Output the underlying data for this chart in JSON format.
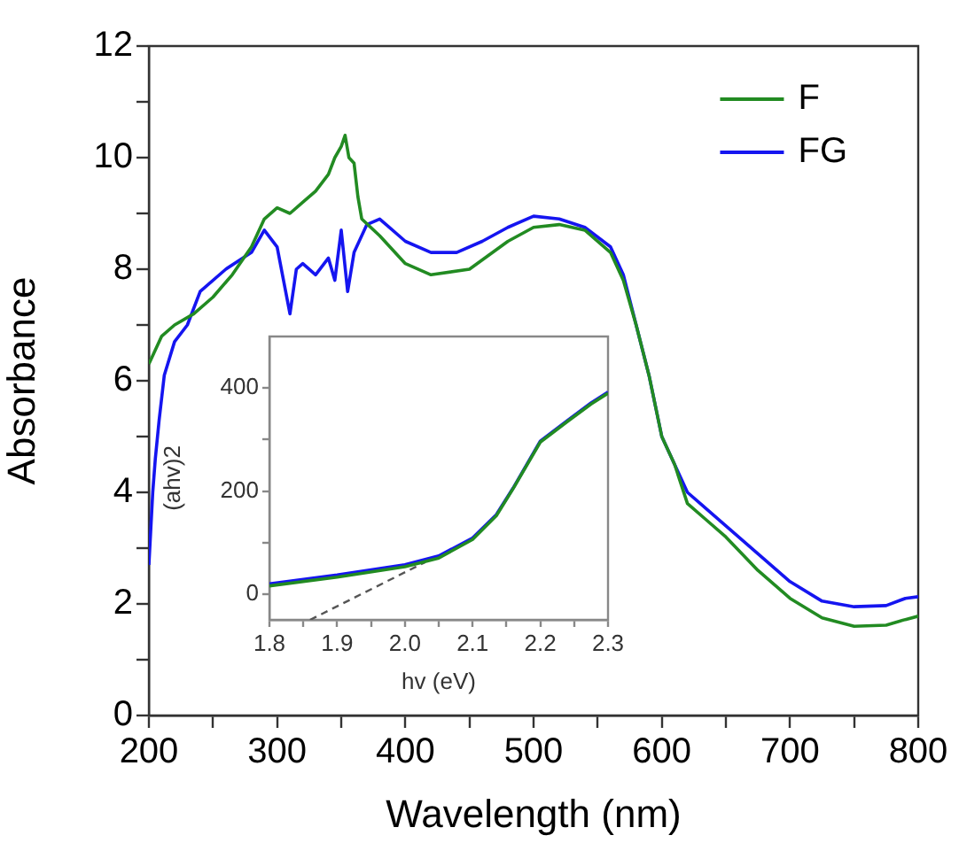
{
  "chart_data": [
    {
      "type": "line",
      "xlabel": "Wavelength (nm)",
      "ylabel": "Absorbance",
      "xlim": [
        200,
        800
      ],
      "ylim": [
        0,
        12
      ],
      "xticks": [
        200,
        {
          "value": 250,
          "label": null
        },
        300,
        {
          "value": 350,
          "label": null
        },
        400,
        {
          "value": 450,
          "label": null
        },
        500,
        {
          "value": 550,
          "label": null
        },
        600,
        {
          "value": 650,
          "label": null
        },
        700,
        {
          "value": 750,
          "label": null
        },
        800
      ],
      "yticks": [
        0,
        {
          "value": 1,
          "label": null
        },
        2,
        {
          "value": 3,
          "label": null
        },
        4,
        {
          "value": 5,
          "label": null
        },
        6,
        {
          "value": 7,
          "label": null
        },
        8,
        {
          "value": 9,
          "label": null
        },
        10,
        {
          "value": 11,
          "label": null
        },
        12
      ],
      "grid": false,
      "legend": "top right",
      "marker": "none",
      "line_style": "solid",
      "series": [
        {
          "name": "F",
          "color": "#228b22",
          "x": [
            200,
            210,
            220,
            235,
            250,
            265,
            280,
            290,
            300,
            310,
            320,
            330,
            340,
            345,
            350,
            353,
            356,
            360,
            363,
            366,
            380,
            400,
            420,
            450,
            480,
            500,
            520,
            540,
            560,
            570,
            580,
            590,
            600,
            610,
            620,
            635,
            650,
            675,
            700,
            725,
            750,
            775,
            790,
            800
          ],
          "values": [
            6.3,
            6.8,
            7.0,
            7.2,
            7.5,
            7.9,
            8.4,
            8.9,
            9.1,
            9.0,
            9.2,
            9.4,
            9.7,
            10.0,
            10.2,
            10.4,
            10.0,
            9.9,
            9.3,
            8.9,
            8.6,
            8.1,
            7.9,
            8.0,
            8.5,
            8.75,
            8.8,
            8.7,
            8.3,
            7.8,
            7.0,
            6.1,
            5.0,
            4.5,
            3.8,
            3.5,
            3.2,
            2.6,
            2.1,
            1.75,
            1.6,
            1.62,
            1.72,
            1.78
          ]
        },
        {
          "name": "FG",
          "color": "#1515f0",
          "x": [
            200,
            203,
            205,
            208,
            212,
            220,
            230,
            240,
            260,
            280,
            290,
            300,
            305,
            310,
            315,
            320,
            330,
            340,
            345,
            350,
            355,
            360,
            370,
            380,
            400,
            420,
            440,
            460,
            480,
            500,
            520,
            540,
            560,
            570,
            580,
            590,
            600,
            610,
            620,
            630,
            650,
            675,
            700,
            725,
            750,
            775,
            790,
            800
          ],
          "values": [
            2.7,
            4.0,
            4.6,
            5.3,
            6.1,
            6.7,
            7.0,
            7.6,
            8.0,
            8.3,
            8.7,
            8.4,
            7.8,
            7.2,
            8.0,
            8.1,
            7.9,
            8.2,
            7.8,
            8.7,
            7.6,
            8.3,
            8.8,
            8.9,
            8.5,
            8.3,
            8.3,
            8.5,
            8.75,
            8.95,
            8.9,
            8.75,
            8.4,
            7.9,
            7.0,
            6.1,
            5.0,
            4.5,
            4.0,
            3.8,
            3.4,
            2.9,
            2.4,
            2.05,
            1.95,
            1.97,
            2.1,
            2.13
          ]
        }
      ]
    },
    {
      "type": "line",
      "xlabel": "hv (eV)",
      "ylabel": "(ahv)2",
      "xlim": [
        1.8,
        2.3
      ],
      "ylim": [
        -50,
        500
      ],
      "xticks": [
        1.8,
        {
          "value": 1.85,
          "label": null
        },
        1.9,
        {
          "value": 1.95,
          "label": null
        },
        {
          "value": 2.0,
          "label": "2.0"
        },
        {
          "value": 2.05,
          "label": null
        },
        2.1,
        {
          "value": 2.15,
          "label": null
        },
        2.2,
        {
          "value": 2.25,
          "label": null
        },
        2.3
      ],
      "yticks": [
        0,
        {
          "value": 100,
          "label": null
        },
        200,
        {
          "value": 300,
          "label": null
        },
        400
      ],
      "grid": false,
      "legend": false,
      "marker": "none",
      "line_style": "solid",
      "series": [
        {
          "color": "#228b22",
          "x": [
            1.8,
            1.9,
            2.0,
            2.05,
            2.1,
            2.135,
            2.16,
            2.2,
            2.24,
            2.275,
            2.3
          ],
          "values": [
            16,
            33,
            53,
            70,
            106,
            152,
            205,
            295,
            335,
            369,
            390
          ]
        },
        {
          "color": "#1515f0",
          "x": [
            1.8,
            1.9,
            2.0,
            2.05,
            2.1,
            2.135,
            2.16,
            2.2,
            2.24,
            2.275,
            2.3
          ],
          "values": [
            20,
            37,
            57,
            74,
            109,
            154,
            206,
            297,
            337,
            371,
            392
          ]
        },
        {
          "type": "line",
          "color": "#555555",
          "line_style": "dashed",
          "x": [
            1.86,
            2.03
          ],
          "values": [
            -50,
            62
          ]
        }
      ]
    }
  ]
}
